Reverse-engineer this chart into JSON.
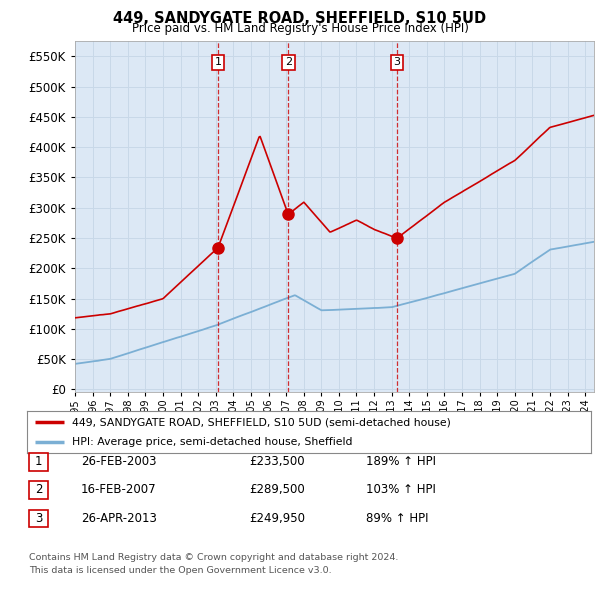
{
  "title": "449, SANDYGATE ROAD, SHEFFIELD, S10 5UD",
  "subtitle": "Price paid vs. HM Land Registry's House Price Index (HPI)",
  "yticks": [
    0,
    50000,
    100000,
    150000,
    200000,
    250000,
    300000,
    350000,
    400000,
    450000,
    500000,
    550000
  ],
  "xlim_start": 1995.0,
  "xlim_end": 2024.5,
  "ylim": [
    -5000,
    575000
  ],
  "sale_color": "#cc0000",
  "hpi_color": "#7bafd4",
  "vline_color": "#cc0000",
  "grid_color": "#c8d8e8",
  "plot_bg_color": "#dce8f5",
  "sale_dates_num": [
    2003.12,
    2007.12,
    2013.29
  ],
  "sale_prices": [
    233500,
    289500,
    249950
  ],
  "sale_labels": [
    "1",
    "2",
    "3"
  ],
  "vline_dates": [
    2003.12,
    2007.12,
    2013.29
  ],
  "legend_label_red": "449, SANDYGATE ROAD, SHEFFIELD, S10 5UD (semi-detached house)",
  "legend_label_blue": "HPI: Average price, semi-detached house, Sheffield",
  "table_data": [
    [
      "1",
      "26-FEB-2003",
      "£233,500",
      "189% ↑ HPI"
    ],
    [
      "2",
      "16-FEB-2007",
      "£289,500",
      "103% ↑ HPI"
    ],
    [
      "3",
      "26-APR-2013",
      "£249,950",
      "89% ↑ HPI"
    ]
  ],
  "footnote1": "Contains HM Land Registry data © Crown copyright and database right 2024.",
  "footnote2": "This data is licensed under the Open Government Licence v3.0.",
  "background_color": "#ffffff"
}
